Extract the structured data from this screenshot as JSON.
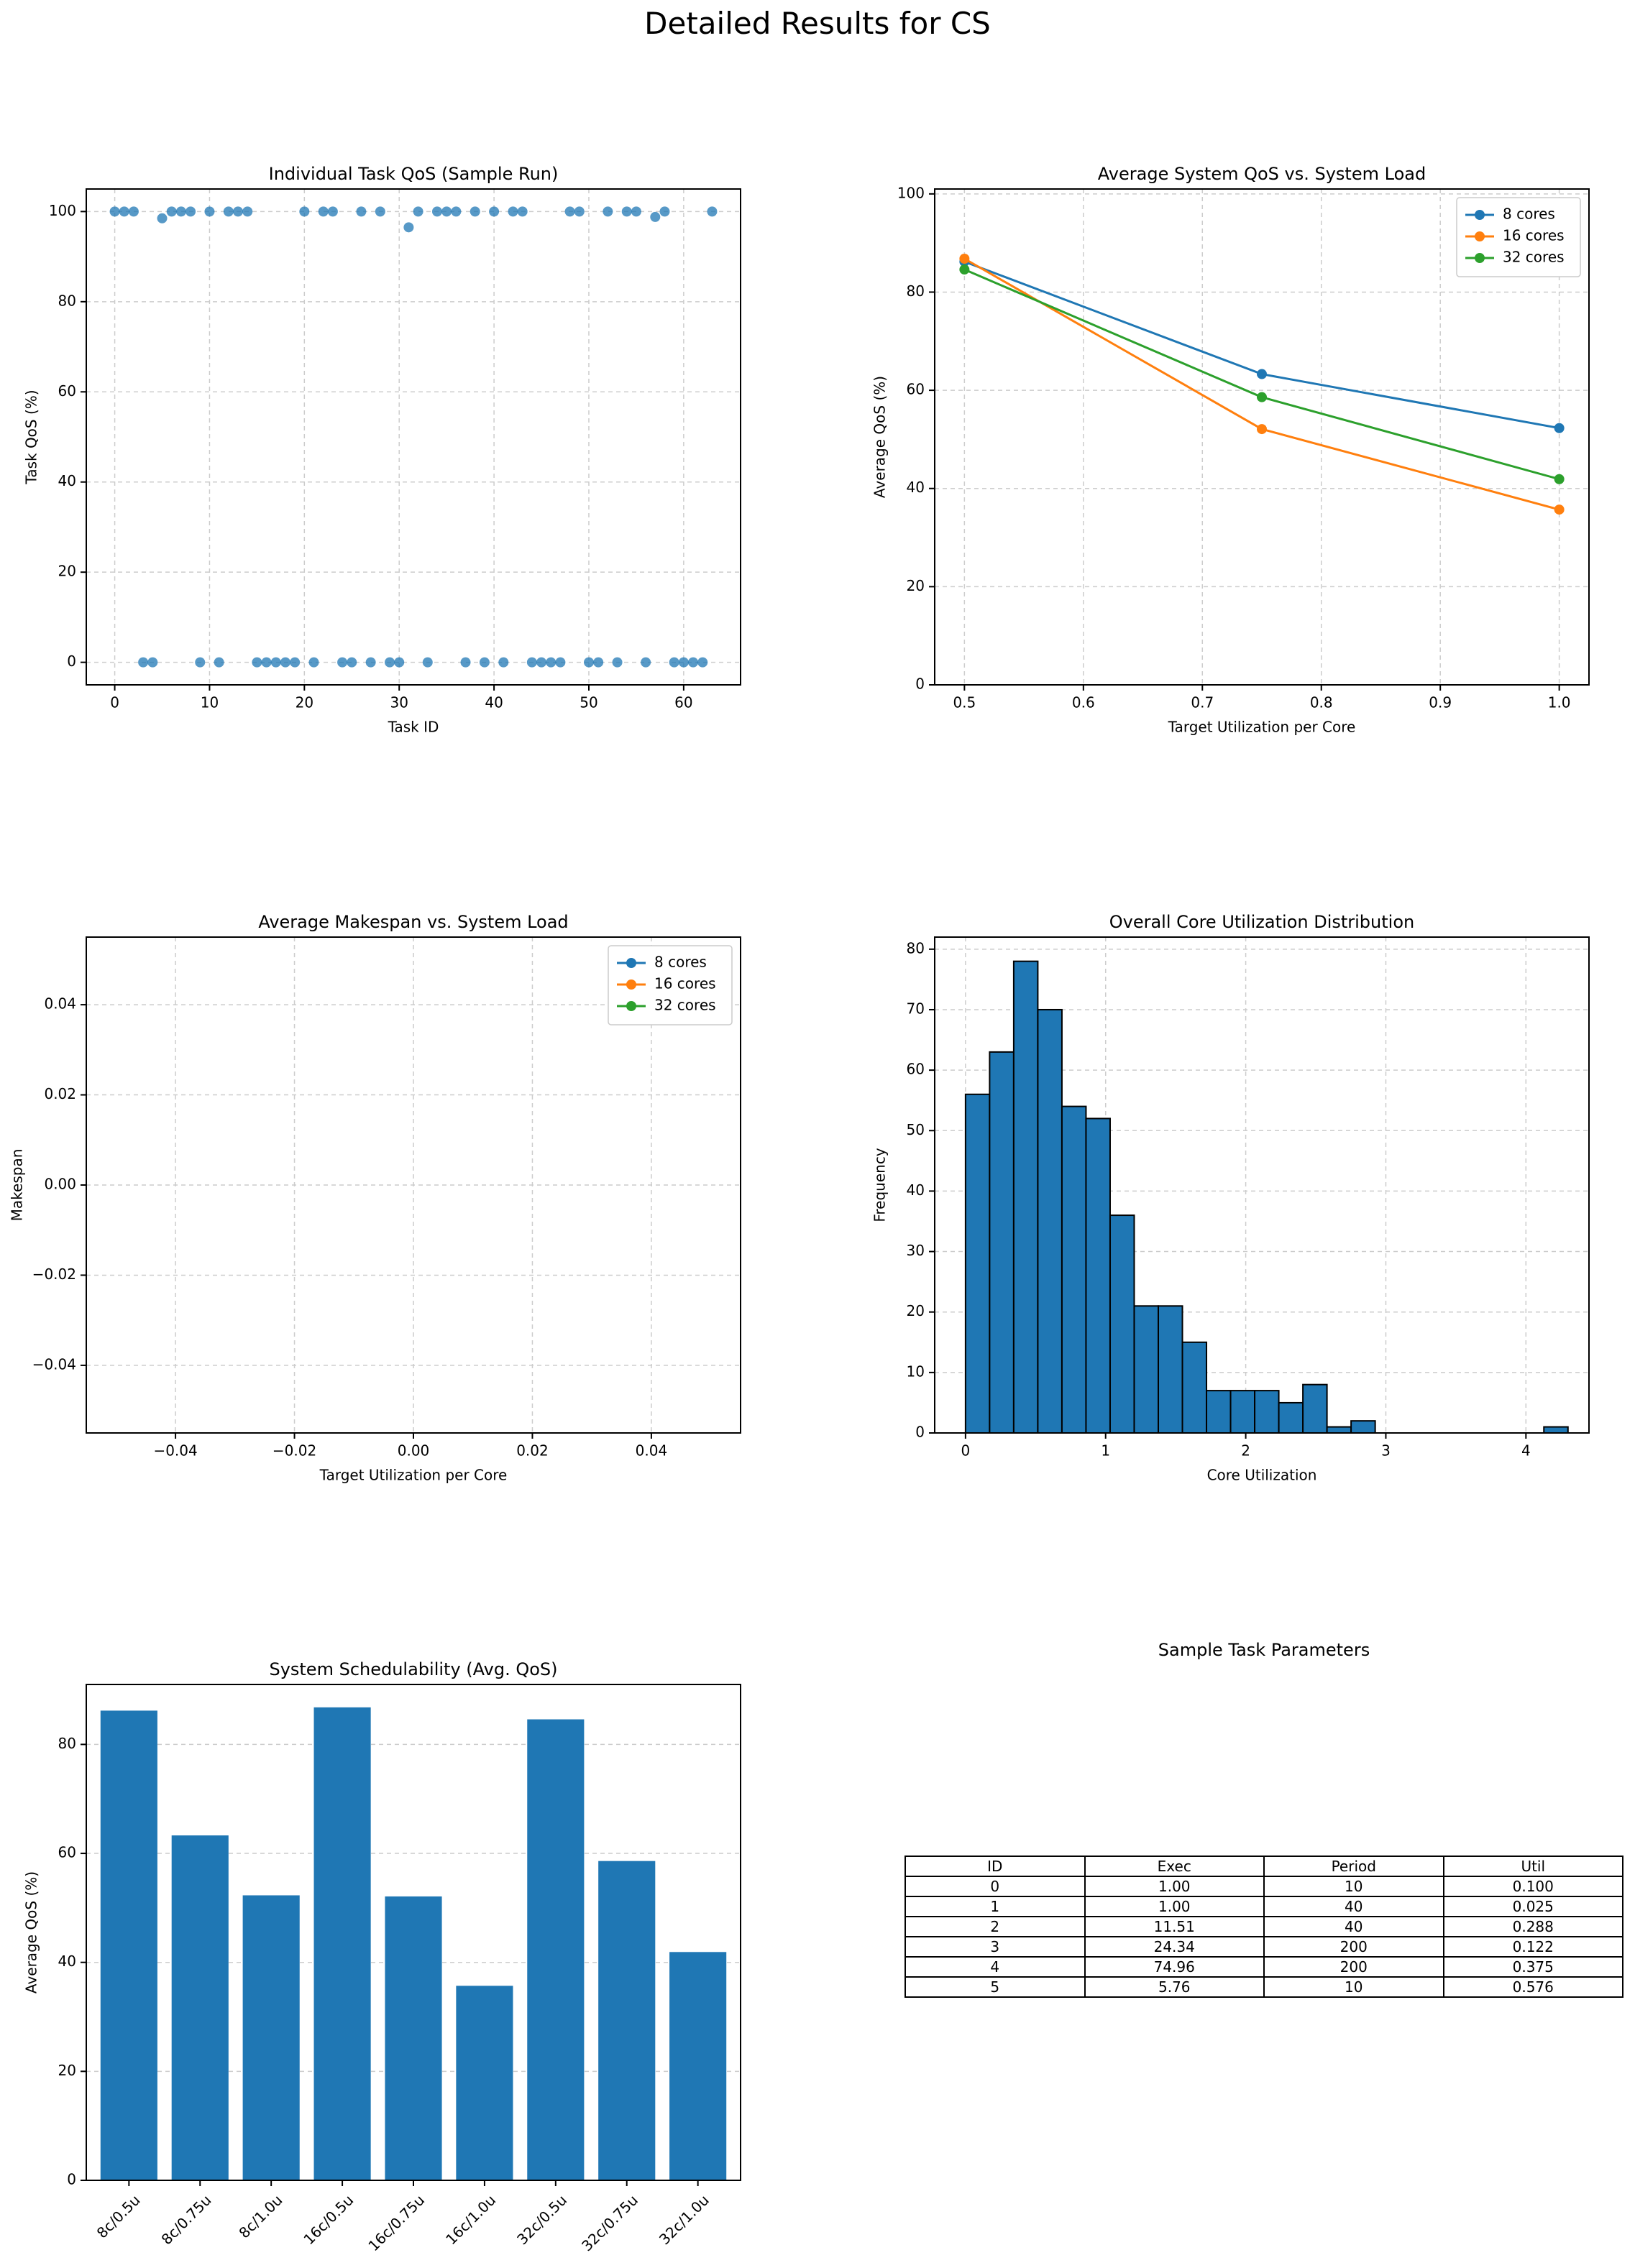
{
  "figure_title": "Detailed Results for CS",
  "chart_data": [
    {
      "id": "task_qos",
      "type": "scatter",
      "title": "Individual Task QoS (Sample Run)",
      "xlabel": "Task ID",
      "ylabel": "Task QoS (%)",
      "xlim": [
        -3,
        66
      ],
      "ylim": [
        -5,
        105
      ],
      "xticks": [
        0,
        10,
        20,
        30,
        40,
        50,
        60
      ],
      "yticks": [
        0,
        20,
        40,
        60,
        80,
        100
      ],
      "grid": true,
      "color": "#1f77b4",
      "x": [
        0,
        1,
        2,
        3,
        4,
        5,
        6,
        7,
        8,
        9,
        10,
        11,
        12,
        13,
        14,
        15,
        16,
        17,
        18,
        19,
        20,
        21,
        22,
        23,
        24,
        25,
        26,
        27,
        28,
        29,
        30,
        31,
        32,
        33,
        34,
        35,
        36,
        37,
        38,
        39,
        40,
        41,
        42,
        43,
        44,
        45,
        46,
        47,
        48,
        49,
        50,
        51,
        52,
        53,
        54,
        55,
        56,
        57,
        58,
        59,
        60,
        61,
        62,
        63
      ],
      "y": [
        100,
        100,
        100,
        0,
        0,
        98.5,
        100,
        100,
        100,
        0,
        100,
        0,
        100,
        100,
        100,
        0,
        0,
        0,
        0,
        0,
        100,
        0,
        100,
        100,
        0,
        0,
        100,
        0,
        100,
        0,
        0,
        96.5,
        100,
        0,
        100,
        100,
        100,
        0,
        100,
        0,
        100,
        0,
        100,
        100,
        0,
        0,
        0,
        0,
        100,
        100,
        0,
        0,
        100,
        0,
        100,
        100,
        0,
        98.8,
        100,
        0,
        0,
        0,
        0,
        100
      ]
    },
    {
      "id": "avg_qos",
      "type": "line",
      "title": "Average System QoS vs. System Load",
      "xlabel": "Target Utilization per Core",
      "ylabel": "Average QoS (%)",
      "x": [
        0.5,
        0.75,
        1.0
      ],
      "xlim": [
        0.475,
        1.025
      ],
      "ylim": [
        0,
        101
      ],
      "xticks": [
        0.5,
        0.6,
        0.7,
        0.8,
        0.9,
        1.0
      ],
      "xticklabels": [
        "0.5",
        "0.6",
        "0.7",
        "0.8",
        "0.9",
        "1.0"
      ],
      "yticks": [
        0,
        20,
        40,
        60,
        80,
        100
      ],
      "grid": true,
      "legend": "top-right",
      "series": [
        {
          "name": "8 cores",
          "color": "#1f77b4",
          "values": [
            86.2,
            63.3,
            52.3
          ]
        },
        {
          "name": "16 cores",
          "color": "#ff7f0e",
          "values": [
            86.8,
            52.1,
            35.7
          ]
        },
        {
          "name": "32 cores",
          "color": "#2ca02c",
          "values": [
            84.6,
            58.6,
            41.9
          ]
        }
      ]
    },
    {
      "id": "makespan",
      "type": "line",
      "title": "Average Makespan vs. System Load",
      "xlabel": "Target Utilization per Core",
      "ylabel": "Makespan",
      "xlim": [
        -0.055,
        0.055
      ],
      "ylim": [
        -0.055,
        0.055
      ],
      "xticks": [
        -0.04,
        -0.02,
        0.0,
        0.02,
        0.04
      ],
      "xticklabels": [
        "−0.04",
        "−0.02",
        "0.00",
        "0.02",
        "0.04"
      ],
      "yticks": [
        -0.04,
        -0.02,
        0.0,
        0.02,
        0.04
      ],
      "yticklabels": [
        "−0.04",
        "−0.02",
        "0.00",
        "0.02",
        "0.04"
      ],
      "grid": true,
      "legend": "top-right",
      "series": [
        {
          "name": "8 cores",
          "color": "#1f77b4",
          "values": []
        },
        {
          "name": "16 cores",
          "color": "#ff7f0e",
          "values": []
        },
        {
          "name": "32 cores",
          "color": "#2ca02c",
          "values": []
        }
      ]
    },
    {
      "id": "core_util",
      "type": "bar",
      "title": "Overall Core Utilization Distribution",
      "xlabel": "Core Utilization",
      "ylabel": "Frequency",
      "xlim": [
        -0.22,
        4.45
      ],
      "ylim": [
        0,
        82
      ],
      "xticks": [
        0,
        1,
        2,
        3,
        4
      ],
      "yticks": [
        0,
        10,
        20,
        30,
        40,
        50,
        60,
        70,
        80
      ],
      "grid": true,
      "color": "#1f77b4",
      "bin_edges": [
        0,
        0.172,
        0.344,
        0.516,
        0.688,
        0.86,
        1.032,
        1.204,
        1.376,
        1.548,
        1.72,
        1.892,
        2.064,
        2.236,
        2.408,
        2.58,
        2.752,
        2.924,
        3.096,
        3.268,
        3.44,
        3.612,
        3.784,
        3.956,
        4.128,
        4.3
      ],
      "values": [
        56,
        63,
        78,
        70,
        54,
        52,
        36,
        21,
        21,
        15,
        7,
        7,
        7,
        5,
        8,
        1,
        2,
        0,
        0,
        0,
        0,
        0,
        0,
        0,
        1
      ]
    },
    {
      "id": "schedulability",
      "type": "bar",
      "title": "System Schedulability (Avg. QoS)",
      "xlabel": "",
      "ylabel": "Average QoS (%)",
      "ylim": [
        0,
        91
      ],
      "yticks": [
        0,
        20,
        40,
        60,
        80
      ],
      "grid": true,
      "color": "#1f77b4",
      "categories": [
        "8c/0.5u",
        "8c/0.75u",
        "8c/1.0u",
        "16c/0.5u",
        "16c/0.75u",
        "16c/1.0u",
        "32c/0.5u",
        "32c/0.75u",
        "32c/1.0u"
      ],
      "values": [
        86.2,
        63.3,
        52.3,
        86.8,
        52.1,
        35.7,
        84.6,
        58.6,
        41.9
      ]
    },
    {
      "id": "task_params",
      "type": "table",
      "title": "Sample Task Parameters",
      "columns": [
        "ID",
        "Exec",
        "Period",
        "Util"
      ],
      "rows": [
        [
          "0",
          "1.00",
          "10",
          "0.100"
        ],
        [
          "1",
          "1.00",
          "40",
          "0.025"
        ],
        [
          "2",
          "11.51",
          "40",
          "0.288"
        ],
        [
          "3",
          "24.34",
          "200",
          "0.122"
        ],
        [
          "4",
          "74.96",
          "200",
          "0.375"
        ],
        [
          "5",
          "5.76",
          "10",
          "0.576"
        ]
      ]
    }
  ]
}
